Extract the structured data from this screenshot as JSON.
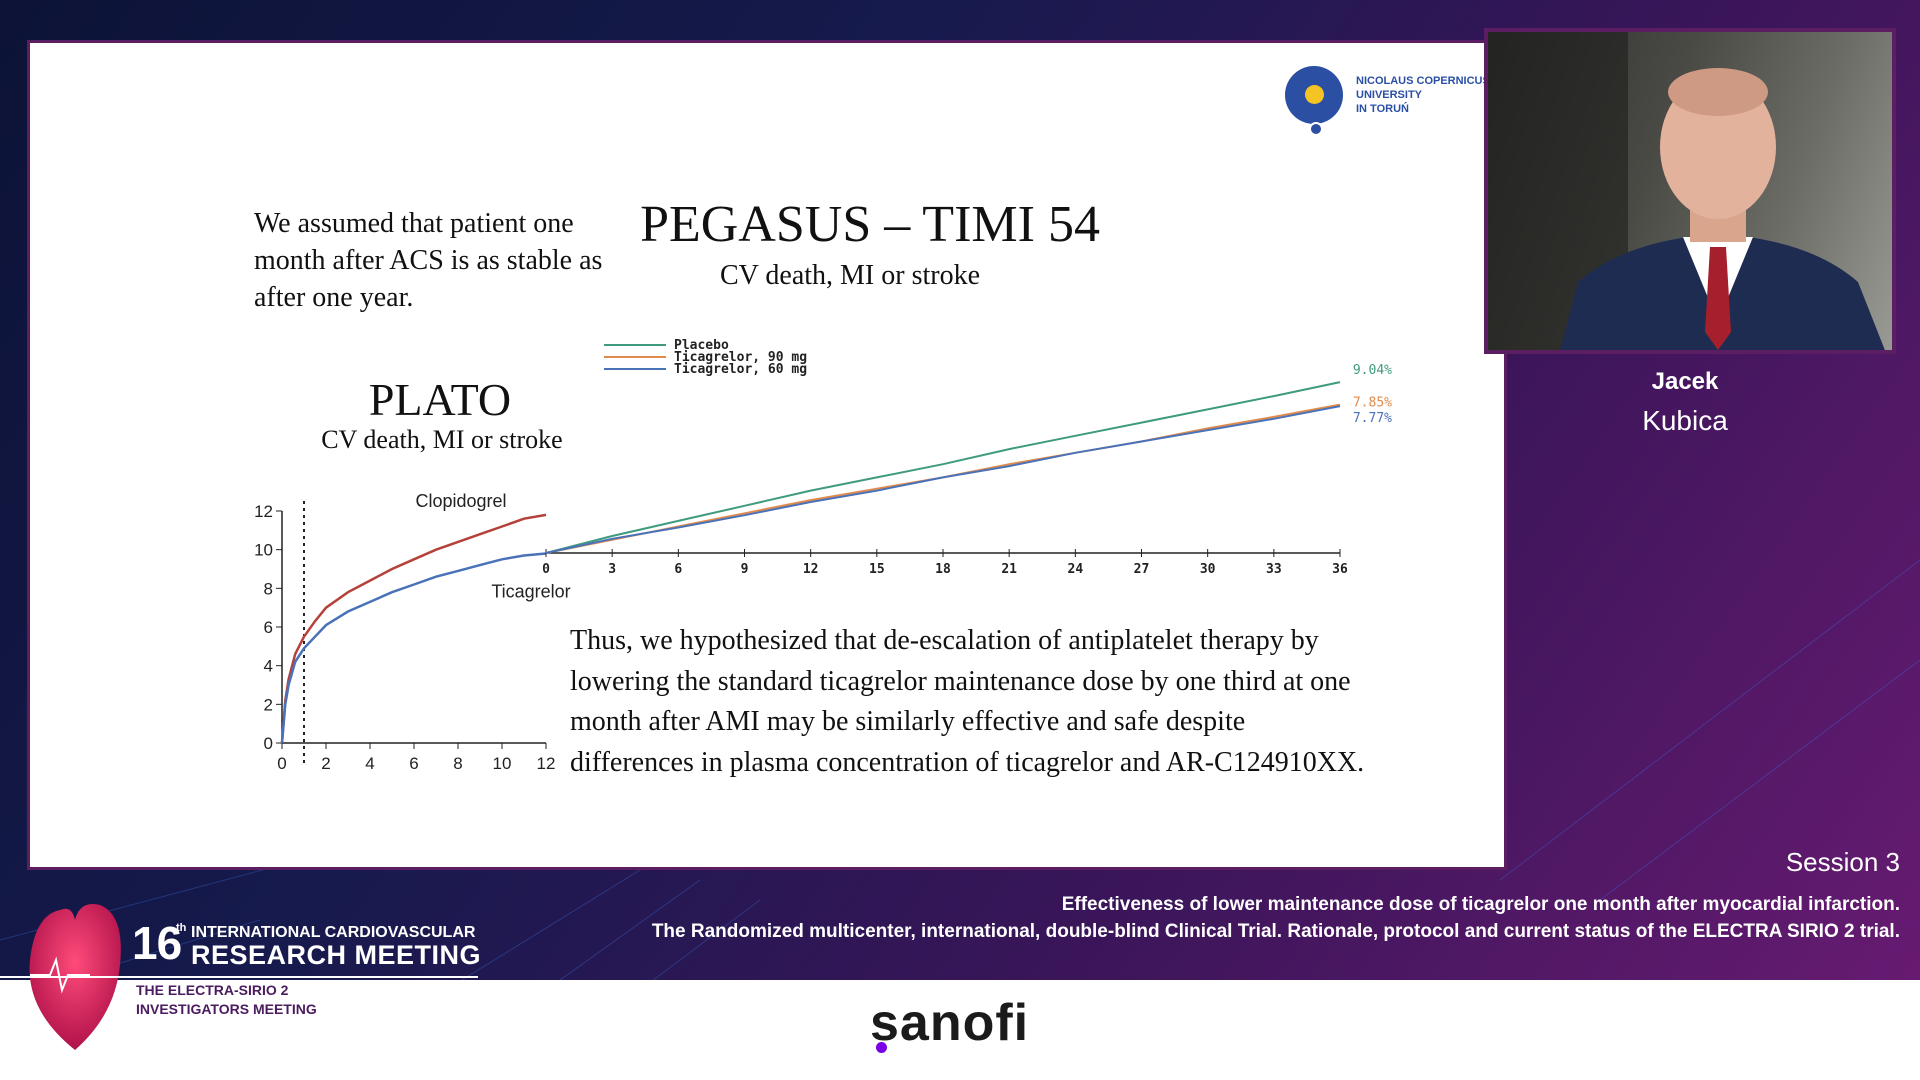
{
  "slide": {
    "assumption": "We assumed that patient one month after ACS is as stable as after one year.",
    "pegasus_title": "PEGASUS – TIMI 54",
    "pegasus_subtitle": "CV death, MI or stroke",
    "plato_title": "PLATO",
    "plato_subtitle": "CV death, MI or stroke",
    "hypothesis": "Thus, we hypothesized that de-escalation of antiplatelet therapy by lowering the standard ticagrelor maintenance dose by one third at one month after AMI may be similarly effective and safe despite differences in plasma concentration of ticagrelor and AR-C124910XX.",
    "university_logo": {
      "line1": "NICOLAUS COPERNICUS",
      "line2": "UNIVERSITY",
      "line3": "IN TORUŃ"
    }
  },
  "chart_data": [
    {
      "type": "line",
      "title": "PLATO",
      "subtitle": "CV death, MI or stroke",
      "xlabel": "",
      "ylabel": "",
      "xlim": [
        0,
        12
      ],
      "ylim": [
        0,
        12
      ],
      "x_ticks": [
        "0",
        "2",
        "4",
        "6",
        "8",
        "10",
        "12"
      ],
      "y_ticks": [
        "0",
        "2",
        "4",
        "6",
        "8",
        "10",
        "12"
      ],
      "reference_line_x": 1,
      "series": [
        {
          "name": "Clopidogrel",
          "color": "#b5413a",
          "x": [
            0,
            0.15,
            0.3,
            0.6,
            1,
            1.5,
            2,
            3,
            4,
            5,
            6,
            7,
            8,
            9,
            10,
            11,
            12
          ],
          "y": [
            0,
            2.2,
            3.3,
            4.6,
            5.5,
            6.3,
            7.0,
            7.8,
            8.4,
            9.0,
            9.5,
            10.0,
            10.4,
            10.8,
            11.2,
            11.6,
            11.8
          ]
        },
        {
          "name": "Ticagrelor",
          "color": "#4a72b8",
          "x": [
            0,
            0.15,
            0.3,
            0.6,
            1,
            1.5,
            2,
            3,
            4,
            5,
            6,
            7,
            8,
            9,
            10,
            11,
            12
          ],
          "y": [
            0,
            2.0,
            3.0,
            4.2,
            4.9,
            5.5,
            6.1,
            6.8,
            7.3,
            7.8,
            8.2,
            8.6,
            8.9,
            9.2,
            9.5,
            9.7,
            9.8
          ]
        }
      ],
      "grid": false
    },
    {
      "type": "line",
      "title": "PEGASUS – TIMI 54",
      "subtitle": "CV death, MI or stroke",
      "xlabel": "",
      "ylabel": "",
      "xlim": [
        0,
        36
      ],
      "x_ticks": [
        "0",
        "3",
        "6",
        "9",
        "12",
        "15",
        "18",
        "21",
        "24",
        "27",
        "30",
        "33",
        "36"
      ],
      "legend_position": "top-left",
      "series": [
        {
          "name": "Placebo",
          "color": "#3f9a7f",
          "end_label": "9.04%",
          "x": [
            0,
            3,
            6,
            9,
            12,
            15,
            18,
            21,
            24,
            27,
            30,
            33,
            36
          ],
          "y": [
            0,
            0.9,
            1.7,
            2.5,
            3.3,
            4.0,
            4.7,
            5.5,
            6.2,
            6.9,
            7.6,
            8.3,
            9.04
          ]
        },
        {
          "name": "Ticagrelor, 90 mg",
          "color": "#e08b4a",
          "end_label": "7.85%",
          "x": [
            0,
            3,
            6,
            9,
            12,
            15,
            18,
            21,
            24,
            27,
            30,
            33,
            36
          ],
          "y": [
            0,
            0.7,
            1.4,
            2.1,
            2.8,
            3.4,
            4.0,
            4.7,
            5.3,
            5.9,
            6.6,
            7.2,
            7.85
          ]
        },
        {
          "name": "Ticagrelor, 60 mg",
          "color": "#4a72b8",
          "end_label": "7.77%",
          "x": [
            0,
            3,
            6,
            9,
            12,
            15,
            18,
            21,
            24,
            27,
            30,
            33,
            36
          ],
          "y": [
            0,
            0.75,
            1.35,
            2.0,
            2.7,
            3.3,
            4.0,
            4.6,
            5.3,
            5.9,
            6.5,
            7.1,
            7.77
          ]
        }
      ],
      "grid": false
    }
  ],
  "speaker": {
    "first_name": "Jacek",
    "last_name": "Kubica"
  },
  "session": {
    "label": "Session 3",
    "talk_line1": "Effectiveness of lower maintenance dose of ticagrelor one month after myocardial infarction.",
    "talk_line2": "The Randomized multicenter, international, double-blind Clinical Trial. Rationale, protocol and current status of the ELECTRA SIRIO 2 trial."
  },
  "meeting": {
    "edition_number": "16",
    "edition_suffix": "th",
    "line1": "INTERNATIONAL CARDIOVASCULAR",
    "line2": "RESEARCH MEETING",
    "sub_line1": "THE ELECTRA-SIRIO 2",
    "sub_line2": "INVESTIGATORS MEETING"
  },
  "sponsor": {
    "name": "sanofi"
  },
  "colors": {
    "slide_border": "#5b1e62",
    "sponsor_dot": "#7a00e6",
    "brand_dark": "#4a1b5e"
  }
}
